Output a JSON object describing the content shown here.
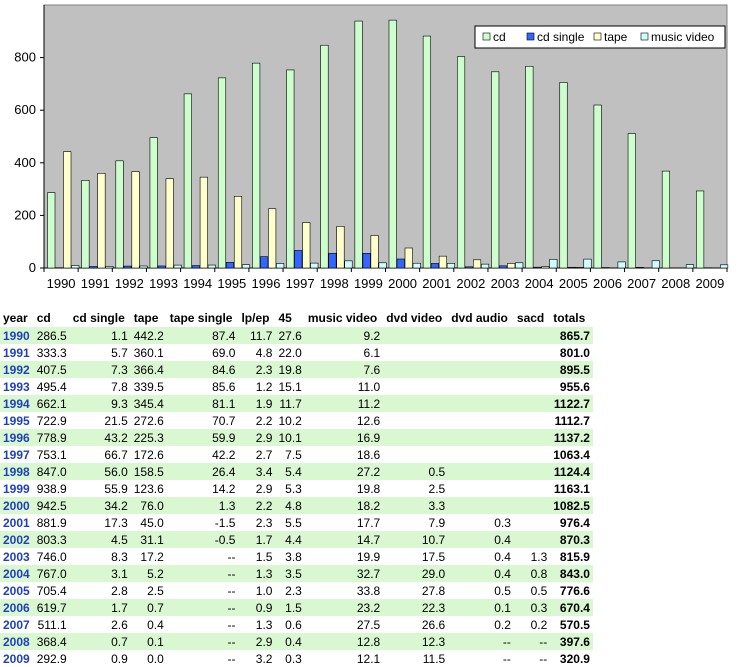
{
  "chart_data": {
    "type": "bar",
    "categories": [
      "1990",
      "1991",
      "1992",
      "1993",
      "1994",
      "1995",
      "1996",
      "1997",
      "1998",
      "1999",
      "2000",
      "2001",
      "2002",
      "2003",
      "2004",
      "2005",
      "2006",
      "2007",
      "2008",
      "2009"
    ],
    "series": [
      {
        "name": "cd",
        "color": "#ccffcc",
        "values": [
          286.5,
          333.3,
          407.5,
          495.4,
          662.1,
          722.9,
          778.9,
          753.1,
          847.0,
          938.9,
          942.5,
          881.9,
          803.3,
          746.0,
          767.0,
          705.4,
          619.7,
          511.1,
          368.4,
          292.9
        ]
      },
      {
        "name": "cd single",
        "color": "#3366ff",
        "values": [
          1.1,
          5.7,
          7.3,
          7.8,
          9.3,
          21.5,
          43.2,
          66.7,
          56.0,
          55.9,
          34.2,
          17.3,
          4.5,
          8.3,
          3.1,
          2.8,
          1.7,
          2.6,
          0.7,
          0.9
        ]
      },
      {
        "name": "tape",
        "color": "#ffffcc",
        "values": [
          442.2,
          360.1,
          366.4,
          339.5,
          345.4,
          272.6,
          225.3,
          172.6,
          158.5,
          123.6,
          76.0,
          45.0,
          31.1,
          17.2,
          5.2,
          2.5,
          0.7,
          0.4,
          0.1,
          0.0
        ]
      },
      {
        "name": "music video",
        "color": "#ccffff",
        "values": [
          9.2,
          6.1,
          7.6,
          11.0,
          11.2,
          12.6,
          16.9,
          18.6,
          27.2,
          19.8,
          18.2,
          17.7,
          14.7,
          19.9,
          32.7,
          33.8,
          23.2,
          27.5,
          12.8,
          12.1
        ]
      }
    ],
    "ylim": [
      0,
      1000
    ],
    "yticks": [
      "0",
      "200",
      "400",
      "600",
      "800"
    ],
    "grid": false,
    "legend": "top-right",
    "plot_bg": "#c0c0c0"
  },
  "table": {
    "headers": [
      "year",
      "cd",
      "cd single",
      "tape",
      "tape single",
      "lp/ep",
      "45",
      "music video",
      "dvd video",
      "dvd audio",
      "sacd",
      "totals"
    ],
    "rows": [
      [
        "1990",
        "286.5",
        "1.1",
        "442.2",
        "87.4",
        "11.7",
        "27.6",
        "9.2",
        "",
        "",
        "",
        "865.7"
      ],
      [
        "1991",
        "333.3",
        "5.7",
        "360.1",
        "69.0",
        "4.8",
        "22.0",
        "6.1",
        "",
        "",
        "",
        "801.0"
      ],
      [
        "1992",
        "407.5",
        "7.3",
        "366.4",
        "84.6",
        "2.3",
        "19.8",
        "7.6",
        "",
        "",
        "",
        "895.5"
      ],
      [
        "1993",
        "495.4",
        "7.8",
        "339.5",
        "85.6",
        "1.2",
        "15.1",
        "11.0",
        "",
        "",
        "",
        "955.6"
      ],
      [
        "1994",
        "662.1",
        "9.3",
        "345.4",
        "81.1",
        "1.9",
        "11.7",
        "11.2",
        "",
        "",
        "",
        "1122.7"
      ],
      [
        "1995",
        "722.9",
        "21.5",
        "272.6",
        "70.7",
        "2.2",
        "10.2",
        "12.6",
        "",
        "",
        "",
        "1112.7"
      ],
      [
        "1996",
        "778.9",
        "43.2",
        "225.3",
        "59.9",
        "2.9",
        "10.1",
        "16.9",
        "",
        "",
        "",
        "1137.2"
      ],
      [
        "1997",
        "753.1",
        "66.7",
        "172.6",
        "42.2",
        "2.7",
        "7.5",
        "18.6",
        "",
        "",
        "",
        "1063.4"
      ],
      [
        "1998",
        "847.0",
        "56.0",
        "158.5",
        "26.4",
        "3.4",
        "5.4",
        "27.2",
        "0.5",
        "",
        "",
        "1124.4"
      ],
      [
        "1999",
        "938.9",
        "55.9",
        "123.6",
        "14.2",
        "2.9",
        "5.3",
        "19.8",
        "2.5",
        "",
        "",
        "1163.1"
      ],
      [
        "2000",
        "942.5",
        "34.2",
        "76.0",
        "1.3",
        "2.2",
        "4.8",
        "18.2",
        "3.3",
        "",
        "",
        "1082.5"
      ],
      [
        "2001",
        "881.9",
        "17.3",
        "45.0",
        "-1.5",
        "2.3",
        "5.5",
        "17.7",
        "7.9",
        "0.3",
        "",
        "976.4"
      ],
      [
        "2002",
        "803.3",
        "4.5",
        "31.1",
        "-0.5",
        "1.7",
        "4.4",
        "14.7",
        "10.7",
        "0.4",
        "",
        "870.3"
      ],
      [
        "2003",
        "746.0",
        "8.3",
        "17.2",
        "--",
        "1.5",
        "3.8",
        "19.9",
        "17.5",
        "0.4",
        "1.3",
        "815.9"
      ],
      [
        "2004",
        "767.0",
        "3.1",
        "5.2",
        "--",
        "1.3",
        "3.5",
        "32.7",
        "29.0",
        "0.4",
        "0.8",
        "843.0"
      ],
      [
        "2005",
        "705.4",
        "2.8",
        "2.5",
        "--",
        "1.0",
        "2.3",
        "33.8",
        "27.8",
        "0.5",
        "0.5",
        "776.6"
      ],
      [
        "2006",
        "619.7",
        "1.7",
        "0.7",
        "--",
        "0.9",
        "1.5",
        "23.2",
        "22.3",
        "0.1",
        "0.3",
        "670.4"
      ],
      [
        "2007",
        "511.1",
        "2.6",
        "0.4",
        "--",
        "1.3",
        "0.6",
        "27.5",
        "26.6",
        "0.2",
        "0.2",
        "570.5"
      ],
      [
        "2008",
        "368.4",
        "0.7",
        "0.1",
        "--",
        "2.9",
        "0.4",
        "12.8",
        "12.3",
        "--",
        "--",
        "397.6"
      ],
      [
        "2009",
        "292.9",
        "0.9",
        "0.0",
        "--",
        "3.2",
        "0.3",
        "12.1",
        "11.5",
        "--",
        "--",
        "320.9"
      ]
    ]
  }
}
